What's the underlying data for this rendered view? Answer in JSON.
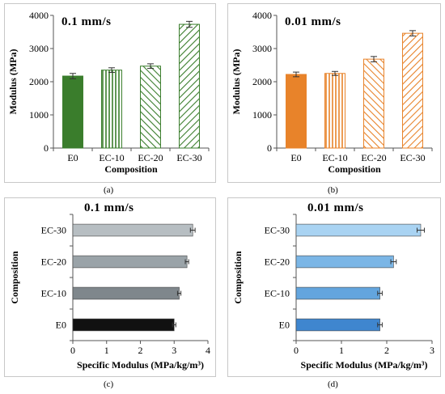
{
  "chart_data": [
    {
      "type": "bar",
      "title": "0.1 mm/s",
      "caption": "(a)",
      "xlabel": "Composition",
      "ylabel": "Modulus (MPa)",
      "categories": [
        "E0",
        "EC-10",
        "EC-20",
        "EC-30"
      ],
      "values": [
        2170,
        2350,
        2470,
        3730
      ],
      "errors": [
        80,
        70,
        70,
        90
      ],
      "ylim": [
        0,
        4000
      ],
      "yticks": [
        "0",
        "1000",
        "2000",
        "3000",
        "4000"
      ],
      "color": "#3a7d2c",
      "fills": [
        "solid",
        "vertical-stripes",
        "diag-left",
        "diag-right"
      ]
    },
    {
      "type": "bar",
      "title": "0.01 mm/s",
      "caption": "(b)",
      "xlabel": "Composition",
      "ylabel": "Modulus (MPa)",
      "categories": [
        "E0",
        "EC-10",
        "EC-20",
        "EC-30"
      ],
      "values": [
        2220,
        2250,
        2680,
        3460
      ],
      "errors": [
        70,
        60,
        80,
        80
      ],
      "ylim": [
        0,
        4000
      ],
      "yticks": [
        "0",
        "1000",
        "2000",
        "3000",
        "4000"
      ],
      "color": "#e8832a",
      "fills": [
        "solid",
        "vertical-stripes",
        "diag-left",
        "diag-right"
      ]
    },
    {
      "type": "bar",
      "orientation": "horizontal",
      "title": "0.1 mm/s",
      "caption": "(c)",
      "xlabel": "Specific Modulus (MPa/kg/m³)",
      "ylabel": "Composition",
      "categories": [
        "E0",
        "EC-10",
        "EC-20",
        "EC-30"
      ],
      "values": [
        3.0,
        3.15,
        3.38,
        3.55
      ],
      "errors": [
        0.05,
        0.05,
        0.05,
        0.07
      ],
      "xlim": [
        0,
        4
      ],
      "xticks": [
        "0",
        "1",
        "2",
        "3",
        "4"
      ],
      "colors": [
        "#111111",
        "#7f878c",
        "#9aa3a8",
        "#b7bec2"
      ]
    },
    {
      "type": "bar",
      "orientation": "horizontal",
      "title": "0.01 mm/s",
      "caption": "(d)",
      "xlabel": "Specific Modulus (MPa/kg/m³)",
      "ylabel": "Composition",
      "categories": [
        "E0",
        "EC-10",
        "EC-20",
        "EC-30"
      ],
      "values": [
        1.85,
        1.85,
        2.15,
        2.75
      ],
      "errors": [
        0.05,
        0.05,
        0.06,
        0.08
      ],
      "xlim": [
        0,
        3
      ],
      "xticks": [
        "0",
        "1",
        "2",
        "3"
      ],
      "colors": [
        "#3f86cf",
        "#63a5de",
        "#7bb6e6",
        "#a9d3f2"
      ]
    }
  ]
}
